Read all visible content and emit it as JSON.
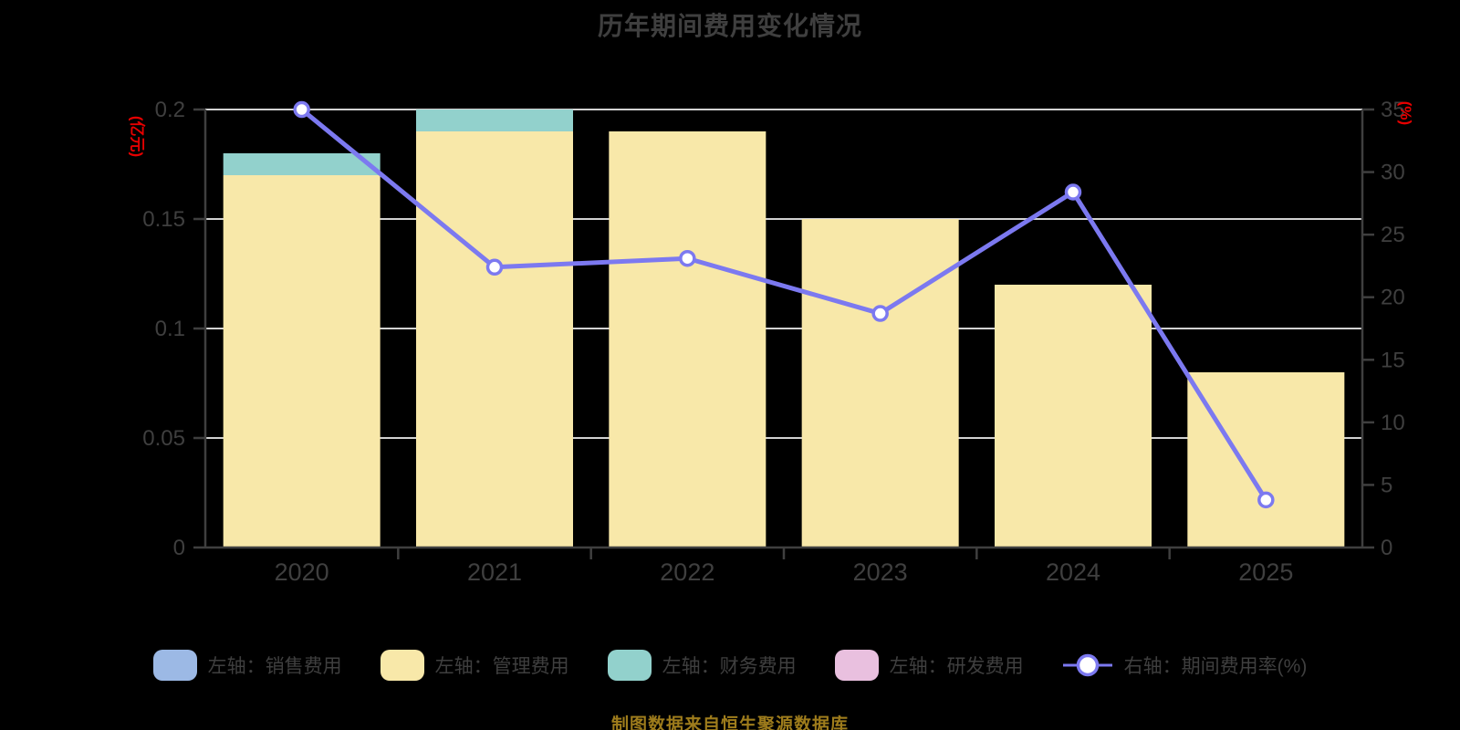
{
  "title": "历年期间费用变化情况",
  "footer": "制图数据来自恒生聚源数据库",
  "colors": {
    "background": "#000000",
    "text": "#3f3f3f",
    "axis": "#3f3f3f",
    "grid": "#d2d2d2",
    "unit_label": "#e60000",
    "footer": "#9e7c1c",
    "line": "#7c79f0",
    "marker_fill": "#ffffff"
  },
  "chart_data": {
    "type": "bar",
    "subtype": "stacked-bar + line combo, dual axis",
    "title": "历年期间费用变化情况",
    "categories": [
      "2020",
      "2021",
      "2022",
      "2023",
      "2024",
      "2025"
    ],
    "left_axis": {
      "unit": "(亿元)",
      "tick_labels": [
        "0",
        "0.05",
        "0.1",
        "0.15",
        "0.2"
      ],
      "tick_values": [
        0,
        0.05,
        0.1,
        0.15,
        0.2
      ],
      "min": 0,
      "max": 0.2
    },
    "right_axis": {
      "unit": "(%)",
      "tick_labels": [
        "0",
        "5",
        "10",
        "15",
        "20",
        "25",
        "30",
        "35"
      ],
      "tick_values": [
        0,
        5,
        10,
        15,
        20,
        25,
        30,
        35
      ],
      "min": 0,
      "max": 35
    },
    "bar_series": [
      {
        "name": "左轴：销售费用",
        "color": "#9cb9e5",
        "values": [
          0,
          0,
          0,
          0,
          0,
          0
        ]
      },
      {
        "name": "左轴：管理费用",
        "color": "#f8e8a9",
        "values": [
          0.17,
          0.19,
          0.19,
          0.15,
          0.12,
          0.08
        ]
      },
      {
        "name": "左轴：财务费用",
        "color": "#92d1cc",
        "values": [
          0.01,
          0.01,
          0,
          0,
          0,
          0
        ]
      },
      {
        "name": "左轴：研发费用",
        "color": "#e9c0df",
        "values": [
          0,
          0,
          0,
          0,
          0,
          0
        ]
      }
    ],
    "line_series": {
      "name": "右轴：期间费用率(%)",
      "color": "#7c79f0",
      "marker": "circle, white fill, purple stroke",
      "values": [
        35,
        22.4,
        23.1,
        18.7,
        28.4,
        3.8
      ]
    },
    "grid": "horizontal light lines at left-axis ticks",
    "legend_position": "bottom"
  }
}
